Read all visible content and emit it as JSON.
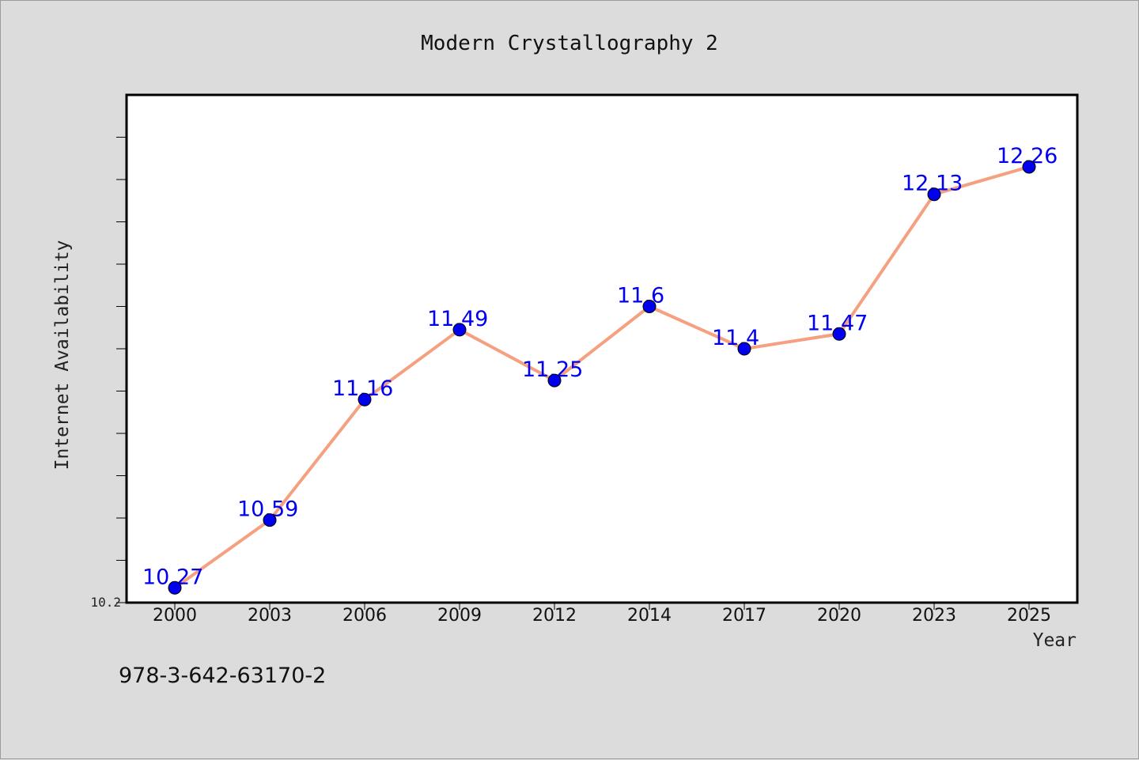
{
  "chart_data": {
    "type": "line",
    "title": "Modern Crystallography 2",
    "xlabel": "Year",
    "ylabel": "Internet Availability",
    "categories": [
      "2000",
      "2003",
      "2006",
      "2009",
      "2012",
      "2014",
      "2017",
      "2020",
      "2023",
      "2025"
    ],
    "series": [
      {
        "name": "",
        "values": [
          10.27,
          10.59,
          11.16,
          11.49,
          11.25,
          11.6,
          11.4,
          11.47,
          12.13,
          12.26
        ],
        "labels": [
          "10.27",
          "10.59",
          "11.16",
          "11.49",
          "11.25",
          "11.6",
          "11.4",
          "11.47",
          "12.13",
          "12.26"
        ]
      }
    ],
    "ylim": [
      10.2,
      12.6
    ],
    "ytick_labels": [
      "10.2"
    ],
    "grid": false,
    "legend": "none",
    "colors": {
      "line": "#f5a080",
      "marker": "#0000ee",
      "data_label": "#0000ee",
      "plot_background": "#ffffff",
      "figure_background": "#dcdcdc"
    }
  },
  "footer_text": "978-3-642-63170-2"
}
